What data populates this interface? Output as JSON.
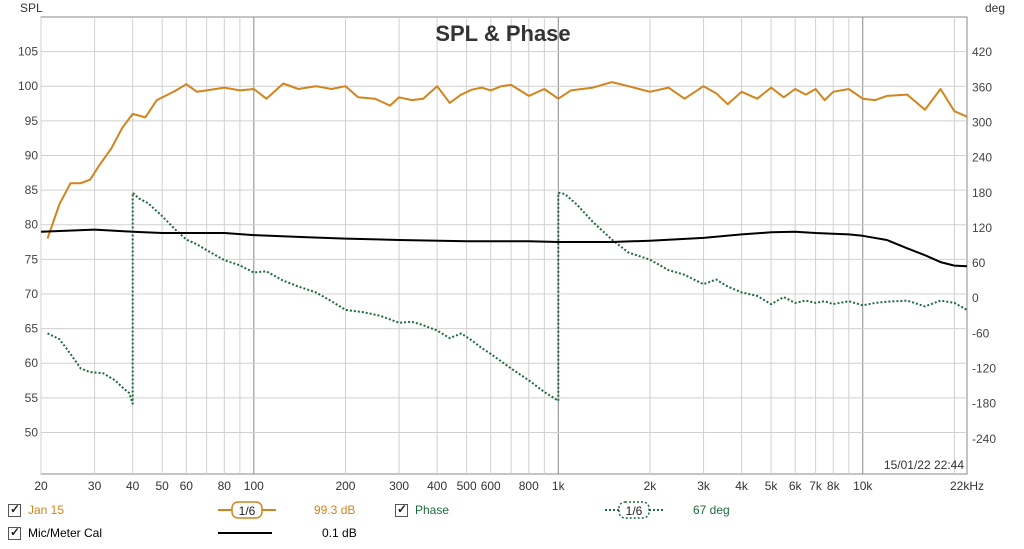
{
  "chart_data": {
    "type": "line",
    "title": "SPL & Phase",
    "left_axis": {
      "label": "SPL",
      "ticks": [
        105,
        100,
        95,
        90,
        85,
        80,
        75,
        70,
        65,
        60,
        55,
        50
      ],
      "range": [
        44,
        110
      ]
    },
    "right_axis": {
      "label": "deg",
      "ticks": [
        420,
        360,
        300,
        240,
        180,
        120,
        60,
        0,
        -60,
        -120,
        -180,
        -240
      ],
      "range": [
        -300,
        480
      ]
    },
    "x_axis": {
      "scale": "log",
      "range": [
        20,
        22000
      ],
      "tick_labels": [
        [
          "20",
          20
        ],
        [
          "30",
          30
        ],
        [
          "40",
          40
        ],
        [
          "50",
          50
        ],
        [
          "60",
          60
        ],
        [
          "80",
          80
        ],
        [
          "100",
          100
        ],
        [
          "200",
          200
        ],
        [
          "300",
          300
        ],
        [
          "400",
          400
        ],
        [
          "500",
          500
        ],
        [
          "600",
          600
        ],
        [
          "800",
          800
        ],
        [
          "1k",
          1000
        ],
        [
          "2k",
          2000
        ],
        [
          "3k",
          3000
        ],
        [
          "4k",
          4000
        ],
        [
          "5k",
          5000
        ],
        [
          "6k",
          6000
        ],
        [
          "7k",
          7000
        ],
        [
          "8k",
          8000
        ],
        [
          "10k",
          10000
        ],
        [
          "22kHz",
          22000
        ]
      ]
    },
    "timestamp": "15/01/22 22:44",
    "series": [
      {
        "name": "Jan 15",
        "color": "#d4841c",
        "axis": "left",
        "style": "solid",
        "x": [
          21,
          23,
          25,
          27,
          29,
          31,
          34,
          37,
          40,
          44,
          48,
          55,
          60,
          65,
          70,
          80,
          90,
          100,
          110,
          125,
          140,
          160,
          180,
          200,
          220,
          250,
          280,
          300,
          330,
          360,
          400,
          440,
          480,
          520,
          560,
          600,
          650,
          700,
          800,
          900,
          1000,
          1100,
          1300,
          1500,
          1700,
          2000,
          2300,
          2600,
          3000,
          3300,
          3600,
          4000,
          4500,
          5000,
          5500,
          6000,
          6500,
          7000,
          7500,
          8000,
          9000,
          10000,
          11000,
          12000,
          14000,
          16000,
          18000,
          20000,
          22000
        ],
        "y": [
          78,
          83,
          86,
          86,
          86.5,
          88.5,
          91,
          94,
          96,
          95.5,
          98,
          99.3,
          100.3,
          99.2,
          99.4,
          99.8,
          99.4,
          99.6,
          98.2,
          100.4,
          99.6,
          100,
          99.6,
          100,
          98.4,
          98.2,
          97.2,
          98.4,
          98,
          98.2,
          100,
          97.6,
          98.8,
          99.5,
          99.8,
          99.4,
          100,
          100.2,
          98.6,
          99.6,
          98.2,
          99.4,
          99.8,
          100.6,
          100,
          99.2,
          99.8,
          98.2,
          100,
          99,
          97.4,
          99.2,
          98.2,
          99.8,
          98.4,
          99.6,
          98.8,
          99.6,
          98,
          99.2,
          99.6,
          98.2,
          98,
          98.6,
          98.8,
          96.6,
          99.6,
          96.4,
          95.6
        ]
      },
      {
        "name": "Phase",
        "color": "#1e6b3c",
        "axis": "right",
        "style": "dotted",
        "x": [
          21,
          23,
          25,
          27,
          29,
          32,
          35,
          37,
          39,
          40,
          40.01,
          42,
          45,
          50,
          55,
          60,
          65,
          70,
          80,
          90,
          100,
          110,
          125,
          140,
          160,
          180,
          200,
          230,
          260,
          300,
          330,
          360,
          400,
          440,
          480,
          520,
          560,
          600,
          700,
          800,
          900,
          1000,
          1000.01,
          1050,
          1150,
          1300,
          1500,
          1700,
          2000,
          2300,
          2600,
          3000,
          3300,
          3600,
          4000,
          4500,
          5000,
          5500,
          6000,
          6500,
          7000,
          7500,
          8000,
          9000,
          10000,
          11000,
          12000,
          14000,
          16000,
          18000,
          20000,
          22000
        ],
        "y": [
          -60,
          -70,
          -95,
          -120,
          -126,
          -128,
          -140,
          -152,
          -162,
          -180,
          180,
          170,
          162,
          140,
          118,
          100,
          92,
          82,
          65,
          56,
          44,
          46,
          30,
          20,
          10,
          -5,
          -20,
          -24,
          -30,
          -42,
          -40,
          -46,
          -55,
          -68,
          -60,
          -72,
          -85,
          -95,
          -120,
          -140,
          -160,
          -175,
          180,
          178,
          160,
          130,
          100,
          78,
          66,
          48,
          40,
          24,
          32,
          20,
          10,
          4,
          -10,
          2,
          -8,
          -4,
          -8,
          -5,
          -10,
          -5,
          -12,
          -8,
          -6,
          -4,
          -14,
          -4,
          -8,
          -20
        ]
      },
      {
        "name": "Mic/Meter Cal",
        "color": "#000000",
        "axis": "left",
        "style": "solid",
        "x": [
          20,
          30,
          40,
          50,
          70,
          80,
          100,
          150,
          200,
          300,
          500,
          800,
          1000,
          1500,
          2000,
          3000,
          4000,
          5000,
          6000,
          7000,
          8000,
          9000,
          10000,
          12000,
          14000,
          16000,
          18000,
          20000,
          22000
        ],
        "y": [
          79,
          79.3,
          79,
          78.8,
          78.8,
          78.8,
          78.5,
          78.2,
          78,
          77.8,
          77.6,
          77.6,
          77.5,
          77.5,
          77.7,
          78.1,
          78.6,
          78.9,
          79,
          78.8,
          78.7,
          78.6,
          78.4,
          77.8,
          76.6,
          75.6,
          74.6,
          74.1,
          74
        ]
      }
    ]
  },
  "legend": [
    {
      "checkbox": "✓",
      "name": "Jan 15",
      "smoothing": "1/6",
      "value": "99.3 dB",
      "color": "#d4841c"
    },
    {
      "checkbox": "✓",
      "name": "Phase",
      "smoothing": "1/6",
      "value": "67 deg",
      "color": "#1e6b3c"
    },
    {
      "checkbox": "✓",
      "name": "Mic/Meter Cal",
      "value": "0.1 dB",
      "color": "#000000"
    }
  ]
}
